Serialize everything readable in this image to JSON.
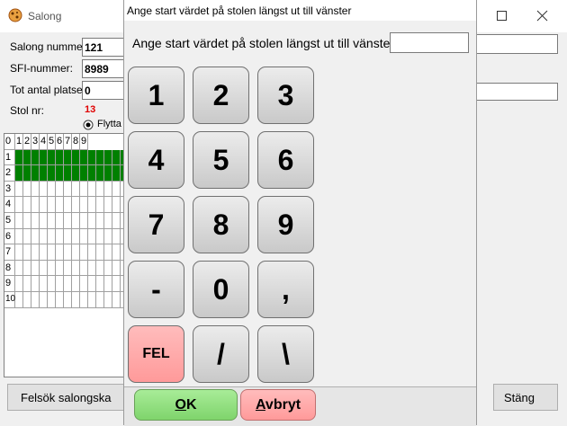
{
  "window": {
    "title": "Salong",
    "fields": [
      {
        "label": "Salong nummer:",
        "value": "121"
      },
      {
        "label": "SFI-nummer:",
        "value": "8989"
      },
      {
        "label": "Tot antal platser:",
        "value": "0"
      }
    ],
    "seat_label": "Stol nr:",
    "seat_value": "13",
    "radio_label": "Flytta",
    "grid": {
      "columns": [
        "0",
        "1",
        "2",
        "3",
        "4",
        "5",
        "6",
        "7",
        "8",
        "9"
      ],
      "rows": [
        "1",
        "2",
        "3",
        "4",
        "5",
        "6",
        "7",
        "8",
        "9",
        "10"
      ]
    },
    "buttons": [
      "Felsök salongska",
      "Stäng"
    ]
  },
  "dialog": {
    "title": "Ange start värdet på stolen längst ut till vänster",
    "prompt": "Ange start värdet på stolen längst ut till vänster:",
    "keys": [
      "1",
      "2",
      "3",
      "4",
      "5",
      "6",
      "7",
      "8",
      "9",
      "-",
      "0",
      ",",
      "FEL",
      "/",
      "\\"
    ],
    "ok": "OK",
    "cancel": "Avbryt"
  }
}
